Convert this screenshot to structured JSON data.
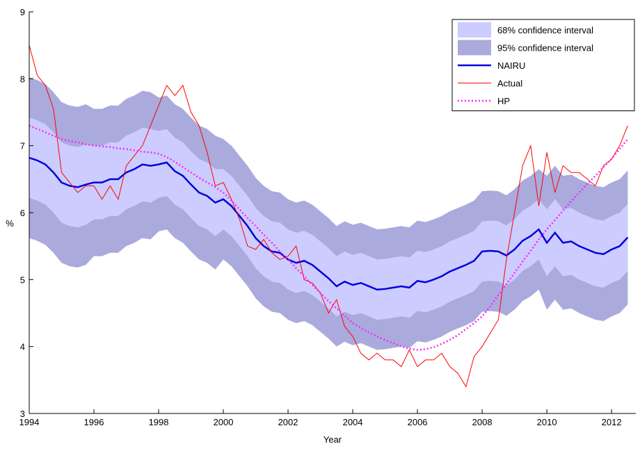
{
  "chart_data": {
    "type": "line",
    "xlabel": "Year",
    "ylabel": "%",
    "xlim": [
      1994,
      2012.75
    ],
    "ylim": [
      3,
      9
    ],
    "xticks": [
      1994,
      1996,
      1998,
      2000,
      2002,
      2004,
      2006,
      2008,
      2010,
      2012
    ],
    "yticks": [
      3,
      4,
      5,
      6,
      7,
      8,
      9
    ],
    "legend": "upper right",
    "x": [
      1994,
      1994.25,
      1994.5,
      1994.75,
      1995,
      1995.25,
      1995.5,
      1995.75,
      1996,
      1996.25,
      1996.5,
      1996.75,
      1997,
      1997.25,
      1997.5,
      1997.75,
      1998,
      1998.25,
      1998.5,
      1998.75,
      1999,
      1999.25,
      1999.5,
      1999.75,
      2000,
      2000.25,
      2000.5,
      2000.75,
      2001,
      2001.25,
      2001.5,
      2001.75,
      2002,
      2002.25,
      2002.5,
      2002.75,
      2003,
      2003.25,
      2003.5,
      2003.75,
      2004,
      2004.25,
      2004.5,
      2004.75,
      2005,
      2005.25,
      2005.5,
      2005.75,
      2006,
      2006.25,
      2006.5,
      2006.75,
      2007,
      2007.25,
      2007.5,
      2007.75,
      2008,
      2008.25,
      2008.5,
      2008.75,
      2009,
      2009.25,
      2009.5,
      2009.75,
      2010,
      2010.25,
      2010.5,
      2010.75,
      2011,
      2011.25,
      2011.5,
      2011.75,
      2012,
      2012.25,
      2012.5
    ],
    "bands": [
      {
        "name": "68% confidence interval",
        "color": "#ccccff",
        "upper": [
          7.42,
          7.38,
          7.32,
          7.2,
          7.05,
          7.0,
          6.98,
          7.02,
          7.0,
          7.0,
          7.05,
          7.05,
          7.15,
          7.2,
          7.27,
          7.25,
          7.22,
          7.25,
          7.12,
          7.05,
          6.92,
          6.8,
          6.75,
          6.65,
          6.65,
          6.55,
          6.4,
          6.25,
          6.07,
          5.95,
          5.87,
          5.85,
          5.75,
          5.7,
          5.73,
          5.67,
          5.57,
          5.47,
          5.35,
          5.42,
          5.37,
          5.4,
          5.35,
          5.3,
          5.31,
          5.33,
          5.35,
          5.33,
          5.43,
          5.41,
          5.45,
          5.5,
          5.57,
          5.62,
          5.67,
          5.73,
          5.87,
          5.88,
          5.87,
          5.81,
          5.9,
          6.03,
          6.1,
          6.2,
          6.05,
          6.2,
          6.05,
          6.07,
          6.0,
          5.95,
          5.9,
          5.88,
          5.95,
          6.0,
          6.13
        ],
        "lower": [
          6.22,
          6.18,
          6.12,
          6.0,
          5.85,
          5.8,
          5.78,
          5.82,
          5.9,
          5.9,
          5.95,
          5.95,
          6.05,
          6.1,
          6.17,
          6.15,
          6.22,
          6.25,
          6.12,
          6.05,
          5.92,
          5.8,
          5.75,
          5.65,
          5.75,
          5.65,
          5.5,
          5.35,
          5.17,
          5.05,
          4.97,
          4.95,
          4.85,
          4.8,
          4.83,
          4.77,
          4.67,
          4.57,
          4.45,
          4.52,
          4.47,
          4.5,
          4.45,
          4.4,
          4.41,
          4.43,
          4.45,
          4.43,
          4.53,
          4.51,
          4.55,
          4.6,
          4.67,
          4.72,
          4.77,
          4.83,
          4.97,
          4.98,
          4.97,
          4.91,
          5.0,
          5.13,
          5.2,
          5.3,
          5.05,
          5.2,
          5.05,
          5.07,
          5.0,
          4.95,
          4.9,
          4.88,
          4.95,
          5.0,
          5.13
        ]
      },
      {
        "name": "95% confidence interval",
        "color": "#aaaadd",
        "upper": [
          8.02,
          7.98,
          7.92,
          7.8,
          7.65,
          7.6,
          7.58,
          7.62,
          7.55,
          7.55,
          7.6,
          7.6,
          7.7,
          7.75,
          7.82,
          7.8,
          7.72,
          7.75,
          7.62,
          7.55,
          7.42,
          7.3,
          7.25,
          7.15,
          7.1,
          7.0,
          6.85,
          6.7,
          6.52,
          6.4,
          6.32,
          6.3,
          6.2,
          6.15,
          6.18,
          6.12,
          6.02,
          5.92,
          5.8,
          5.87,
          5.82,
          5.85,
          5.8,
          5.75,
          5.76,
          5.78,
          5.8,
          5.78,
          5.88,
          5.86,
          5.9,
          5.95,
          6.02,
          6.07,
          6.12,
          6.18,
          6.32,
          6.33,
          6.32,
          6.26,
          6.35,
          6.48,
          6.55,
          6.65,
          6.55,
          6.7,
          6.55,
          6.57,
          6.5,
          6.45,
          6.4,
          6.38,
          6.45,
          6.5,
          6.63
        ],
        "lower": [
          5.62,
          5.58,
          5.52,
          5.4,
          5.25,
          5.2,
          5.18,
          5.22,
          5.35,
          5.35,
          5.4,
          5.4,
          5.5,
          5.55,
          5.62,
          5.6,
          5.72,
          5.75,
          5.62,
          5.55,
          5.42,
          5.3,
          5.25,
          5.15,
          5.3,
          5.2,
          5.05,
          4.9,
          4.72,
          4.6,
          4.52,
          4.5,
          4.4,
          4.35,
          4.38,
          4.32,
          4.22,
          4.12,
          4.0,
          4.07,
          4.02,
          4.05,
          4.0,
          3.95,
          3.96,
          3.98,
          4.0,
          3.98,
          4.08,
          4.06,
          4.1,
          4.15,
          4.22,
          4.27,
          4.32,
          4.38,
          4.52,
          4.53,
          4.52,
          4.46,
          4.55,
          4.68,
          4.75,
          4.85,
          4.55,
          4.7,
          4.55,
          4.57,
          4.5,
          4.45,
          4.4,
          4.38,
          4.45,
          4.5,
          4.63
        ]
      }
    ],
    "series": [
      {
        "name": "NAIRU",
        "color": "#0000dd",
        "values": [
          6.82,
          6.78,
          6.72,
          6.6,
          6.45,
          6.4,
          6.38,
          6.42,
          6.45,
          6.45,
          6.5,
          6.5,
          6.6,
          6.65,
          6.72,
          6.7,
          6.72,
          6.75,
          6.62,
          6.55,
          6.42,
          6.3,
          6.25,
          6.15,
          6.2,
          6.1,
          5.95,
          5.8,
          5.62,
          5.5,
          5.42,
          5.4,
          5.3,
          5.25,
          5.28,
          5.22,
          5.12,
          5.02,
          4.9,
          4.97,
          4.92,
          4.95,
          4.9,
          4.85,
          4.86,
          4.88,
          4.9,
          4.88,
          4.98,
          4.96,
          5.0,
          5.05,
          5.12,
          5.17,
          5.22,
          5.28,
          5.42,
          5.43,
          5.42,
          5.36,
          5.45,
          5.58,
          5.65,
          5.75,
          5.55,
          5.7,
          5.55,
          5.57,
          5.5,
          5.45,
          5.4,
          5.38,
          5.45,
          5.5,
          5.63
        ]
      },
      {
        "name": "Actual",
        "color": "#ff0000",
        "values": [
          8.5,
          8.05,
          7.9,
          7.55,
          6.6,
          6.45,
          6.3,
          6.4,
          6.4,
          6.2,
          6.4,
          6.2,
          6.7,
          6.85,
          7.0,
          7.3,
          7.6,
          7.9,
          7.75,
          7.9,
          7.5,
          7.3,
          6.9,
          6.4,
          6.45,
          6.2,
          5.9,
          5.5,
          5.45,
          5.6,
          5.4,
          5.3,
          5.35,
          5.5,
          5.0,
          4.95,
          4.8,
          4.5,
          4.7,
          4.3,
          4.15,
          3.9,
          3.8,
          3.9,
          3.8,
          3.8,
          3.7,
          3.95,
          3.7,
          3.8,
          3.8,
          3.9,
          3.7,
          3.6,
          3.4,
          3.85,
          4.0,
          4.2,
          4.4,
          5.3,
          6.0,
          6.7,
          7.0,
          6.1,
          6.9,
          6.3,
          6.7,
          6.6,
          6.6,
          6.5,
          6.4,
          6.7,
          6.8,
          7.0,
          7.3
        ]
      },
      {
        "name": "HP",
        "color": "#ff22ff",
        "dashed": true,
        "values": [
          7.3,
          7.25,
          7.2,
          7.15,
          7.1,
          7.07,
          7.05,
          7.02,
          7.0,
          6.99,
          6.98,
          6.96,
          6.95,
          6.93,
          6.91,
          6.9,
          6.88,
          6.83,
          6.76,
          6.68,
          6.6,
          6.52,
          6.45,
          6.38,
          6.3,
          6.18,
          6.05,
          5.92,
          5.8,
          5.67,
          5.55,
          5.42,
          5.3,
          5.17,
          5.05,
          4.92,
          4.8,
          4.68,
          4.57,
          4.46,
          4.35,
          4.28,
          4.21,
          4.15,
          4.1,
          4.05,
          4.0,
          3.97,
          3.95,
          3.96,
          3.99,
          4.04,
          4.1,
          4.17,
          4.26,
          4.35,
          4.45,
          4.6,
          4.77,
          4.93,
          5.1,
          5.27,
          5.43,
          5.6,
          5.75,
          5.89,
          6.03,
          6.17,
          6.3,
          6.43,
          6.55,
          6.68,
          6.8,
          6.95,
          7.1
        ]
      }
    ]
  }
}
